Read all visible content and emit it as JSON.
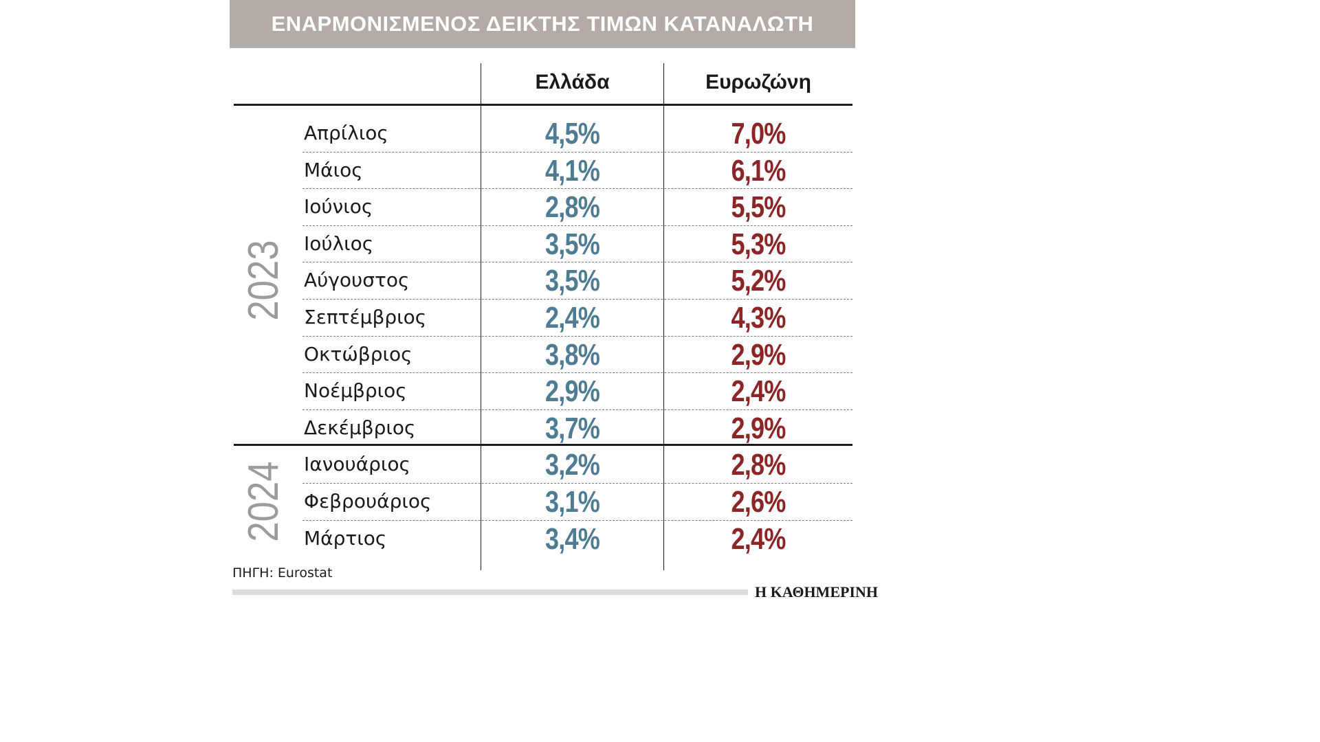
{
  "title": "ΕΝΑΡΜΟΝΙΣΜΕΝΟΣ ΔΕΙΚΤΗΣ ΤΙΜΩΝ ΚΑΤΑΝΑΛΩΤΗ",
  "columns": [
    "Ελλάδα",
    "Ευρωζώνη"
  ],
  "source": "ΠΗΓΗ: Eurostat",
  "publisher": "Η ΚΑΘΗΜΕΡΙΝΗ",
  "colors": {
    "header_bg": "#b3aba6",
    "greece": "#4e7c93",
    "eurozone": "#8b2526",
    "year_label": "#9b9b9b"
  },
  "chart_data": {
    "type": "table",
    "title": "ΕΝΑΡΜΟΝΙΣΜΕΝΟΣ ΔΕΙΚΤΗΣ ΤΙΜΩΝ ΚΑΤΑΝΑΛΩΤΗ",
    "columns": [
      "Ελλάδα",
      "Ευρωζώνη"
    ],
    "groups": [
      {
        "year": "2023",
        "rows": [
          {
            "month": "Απρίλιος",
            "greece": "4,5%",
            "eurozone": "7,0%"
          },
          {
            "month": "Μάιος",
            "greece": "4,1%",
            "eurozone": "6,1%"
          },
          {
            "month": "Ιούνιος",
            "greece": "2,8%",
            "eurozone": "5,5%"
          },
          {
            "month": "Ιούλιος",
            "greece": "3,5%",
            "eurozone": "5,3%"
          },
          {
            "month": "Αύγουστος",
            "greece": "3,5%",
            "eurozone": "5,2%"
          },
          {
            "month": "Σεπτέμβριος",
            "greece": "2,4%",
            "eurozone": "4,3%"
          },
          {
            "month": "Οκτώβριος",
            "greece": "3,8%",
            "eurozone": "2,9%"
          },
          {
            "month": "Νοέμβριος",
            "greece": "2,9%",
            "eurozone": "2,4%"
          },
          {
            "month": "Δεκέμβριος",
            "greece": "3,7%",
            "eurozone": "2,9%"
          }
        ]
      },
      {
        "year": "2024",
        "rows": [
          {
            "month": "Ιανουάριος",
            "greece": "3,2%",
            "eurozone": "2,8%"
          },
          {
            "month": "Φεβρουάριος",
            "greece": "3,1%",
            "eurozone": "2,6%"
          },
          {
            "month": "Μάρτιος",
            "greece": "3,4%",
            "eurozone": "2,4%"
          }
        ]
      }
    ]
  }
}
